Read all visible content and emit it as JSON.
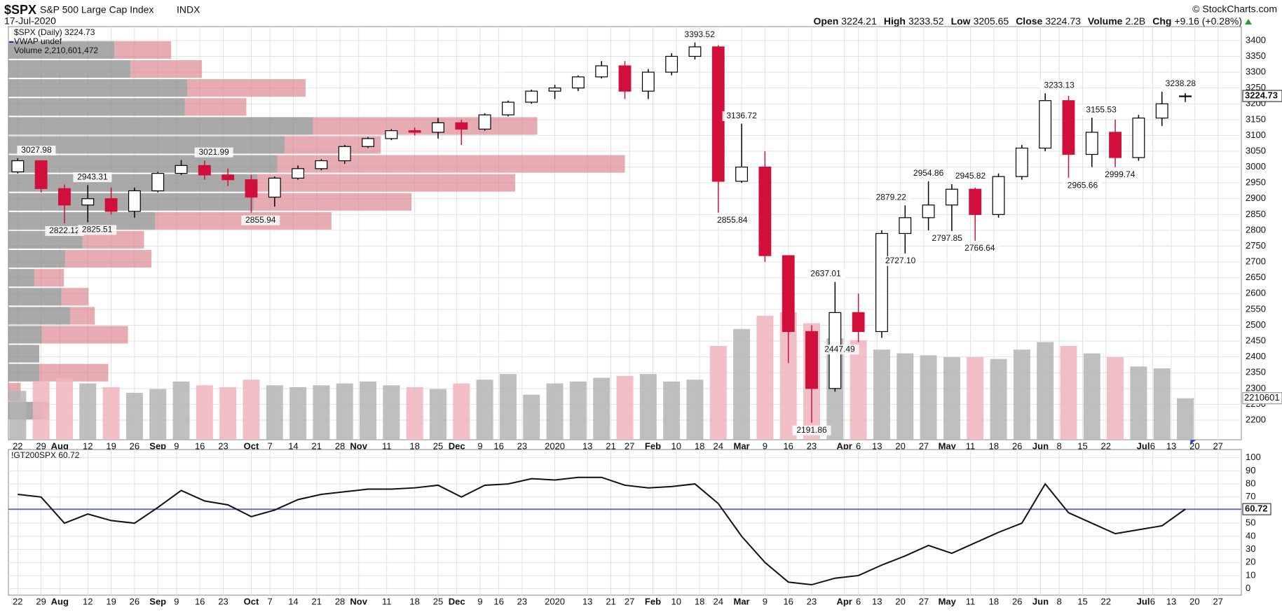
{
  "header": {
    "symbol": "$SPX",
    "name": "S&P 500 Large Cap Index",
    "exchange": "INDX",
    "date": "17-Jul-2020",
    "credit": "© StockCharts.com",
    "stats": [
      {
        "label": "Open",
        "value": "3224.21"
      },
      {
        "label": "High",
        "value": "3233.52"
      },
      {
        "label": "Low",
        "value": "3205.65"
      },
      {
        "label": "Close",
        "value": "3224.73"
      },
      {
        "label": "Volume",
        "value": "2.2B"
      },
      {
        "label": "Chg",
        "value": "+9.16 (+0.28%)"
      }
    ]
  },
  "chart_data": [
    {
      "type": "candlestick",
      "legend": [
        "$SPX (Daily) 3224.73",
        "VWAP undef",
        "Volume 2,210,601,472"
      ],
      "up_color": "#000000",
      "down_color": "#d0103a",
      "volume_up_color": "#b4b4b4",
      "volume_down_color": "#f0b4bc",
      "grid": true,
      "x": [
        0,
        5,
        10,
        15,
        20,
        25,
        30,
        35,
        40,
        45,
        50,
        55,
        60,
        65,
        70,
        75,
        80,
        85,
        90,
        95,
        100,
        105,
        110,
        115,
        120,
        125,
        130,
        135,
        140,
        145,
        150,
        155,
        160,
        165,
        170,
        175,
        180,
        185,
        190,
        195,
        200,
        205,
        210,
        215,
        220,
        225,
        230,
        235,
        240,
        245,
        250
      ],
      "open": [
        2985,
        3020,
        2932,
        2880,
        2900,
        2860,
        2925,
        2980,
        3005,
        2975,
        2960,
        2905,
        2965,
        2995,
        3020,
        3065,
        3090,
        3115,
        3110,
        3140,
        3120,
        3165,
        3205,
        3240,
        3250,
        3285,
        3320,
        3240,
        3300,
        3350,
        3380,
        2955,
        3000,
        2720,
        2480,
        2300,
        2540,
        2480,
        2790,
        2840,
        2880,
        2930,
        2850,
        2970,
        3060,
        3210,
        3040,
        3110,
        3030,
        3155,
        3224.21
      ],
      "high": [
        3028,
        3020,
        2945,
        2943,
        2935,
        2935,
        2985,
        3022,
        3021,
        2995,
        2975,
        2970,
        3005,
        3025,
        3070,
        3095,
        3120,
        3125,
        3155,
        3150,
        3170,
        3210,
        3245,
        3260,
        3290,
        3335,
        3335,
        3310,
        3360,
        3394,
        3385,
        3137,
        3050,
        2720,
        2500,
        2637,
        2600,
        2800,
        2879,
        2955,
        2946,
        2935,
        2980,
        3070,
        3233,
        3225,
        3156,
        3150,
        3165,
        3238,
        3233.52
      ],
      "low": [
        2980,
        2920,
        2822,
        2826,
        2850,
        2840,
        2920,
        2975,
        2960,
        2940,
        2856,
        2875,
        2960,
        2990,
        3010,
        3060,
        3085,
        3100,
        3090,
        3070,
        3115,
        3160,
        3200,
        3215,
        3240,
        3280,
        3215,
        3215,
        3290,
        3340,
        2856,
        2950,
        2700,
        2380,
        2192,
        2290,
        2447,
        2460,
        2727,
        2800,
        2798,
        2767,
        2840,
        2960,
        3050,
        2966,
        3000,
        3000,
        3020,
        3130,
        3205.65
      ],
      "close": [
        3020,
        2932,
        2880,
        2900,
        2860,
        2925,
        2980,
        3005,
        2975,
        2960,
        2905,
        2965,
        2995,
        3020,
        3065,
        3090,
        3115,
        3110,
        3140,
        3120,
        3165,
        3205,
        3240,
        3250,
        3285,
        3320,
        3240,
        3300,
        3350,
        3380,
        2955,
        3000,
        2720,
        2480,
        2300,
        2540,
        2480,
        2790,
        2840,
        2880,
        2930,
        2850,
        2970,
        3060,
        3210,
        3040,
        3110,
        3030,
        3155,
        3200,
        3224.73
      ],
      "volume": {
        "values": [
          2.6,
          3.1,
          3.3,
          3.0,
          2.8,
          2.5,
          2.7,
          3.1,
          2.9,
          2.8,
          3.2,
          2.9,
          2.8,
          2.9,
          3.0,
          3.1,
          2.9,
          2.8,
          2.7,
          3.0,
          3.2,
          3.5,
          2.4,
          3.0,
          3.1,
          3.3,
          3.4,
          3.5,
          3.1,
          3.2,
          5.0,
          5.9,
          6.6,
          6.8,
          6.2,
          5.4,
          5.3,
          4.8,
          4.6,
          4.5,
          4.4,
          4.4,
          4.3,
          4.8,
          5.2,
          5.0,
          4.6,
          4.4,
          3.9,
          3.8,
          2.210601472
        ],
        "y2lim": [
          0,
          22
        ],
        "tag": "2210601"
      },
      "volume_by_price": {
        "bins": [
          2200,
          2260,
          2320,
          2380,
          2440,
          2500,
          2560,
          2620,
          2680,
          2740,
          2800,
          2860,
          2920,
          2980,
          3040,
          3100,
          3160,
          3220,
          3280,
          3340,
          3400
        ],
        "down": [
          2.7,
          0,
          2.5,
          2.5,
          2.7,
          5.0,
          4.3,
          2.1,
          4.6,
          6.0,
          11.9,
          19.9,
          20.2,
          21.8,
          22.4,
          24.7,
          14.3,
          14.5,
          9.9,
          8.6
        ],
        "up": [
          0.6,
          1.0,
          5.6,
          0,
          7.0,
          2.0,
          2.2,
          2.4,
          7.0,
          5.0,
          14.3,
          12.8,
          20.9,
          28.2,
          7.8,
          18.2,
          5.0,
          9.6,
          5.8,
          4.6
        ],
        "xlim": [
          0,
          100
        ]
      },
      "annotations": [
        {
          "label": "3027.98",
          "x": 4,
          "value": 3027.98,
          "side": "above"
        },
        {
          "label": "2943.31",
          "x": 16,
          "value": 2943.31,
          "side": "above"
        },
        {
          "label": "2822.12",
          "x": 10,
          "value": 2822.12,
          "side": "below"
        },
        {
          "label": "2825.51",
          "x": 17,
          "value": 2825.51,
          "side": "below"
        },
        {
          "label": "3021.99",
          "x": 42,
          "value": 3021.99,
          "side": "above"
        },
        {
          "label": "2855.94",
          "x": 52,
          "value": 2855.94,
          "side": "below"
        },
        {
          "label": "3393.52",
          "x": 146,
          "value": 3393.52,
          "side": "above"
        },
        {
          "label": "3136.72",
          "x": 155,
          "value": 3136.72,
          "side": "above"
        },
        {
          "label": "2855.84",
          "x": 153,
          "value": 2855.84,
          "side": "below"
        },
        {
          "label": "2637.01",
          "x": 173,
          "value": 2637.01,
          "side": "above"
        },
        {
          "label": "2447.49",
          "x": 176,
          "value": 2447.49,
          "side": "below"
        },
        {
          "label": "2191.86",
          "x": 170,
          "value": 2191.86,
          "side": "below"
        },
        {
          "label": "2879.22",
          "x": 187,
          "value": 2879.22,
          "side": "above"
        },
        {
          "label": "2727.10",
          "x": 189,
          "value": 2727.1,
          "side": "below"
        },
        {
          "label": "2954.86",
          "x": 195,
          "value": 2954.86,
          "side": "above"
        },
        {
          "label": "2797.85",
          "x": 199,
          "value": 2797.85,
          "side": "below"
        },
        {
          "label": "2945.82",
          "x": 204,
          "value": 2945.82,
          "side": "above"
        },
        {
          "label": "2766.64",
          "x": 206,
          "value": 2766.64,
          "side": "below"
        },
        {
          "label": "3233.13",
          "x": 223,
          "value": 3233.13,
          "side": "above"
        },
        {
          "label": "2965.66",
          "x": 228,
          "value": 2965.66,
          "side": "below"
        },
        {
          "label": "3155.53",
          "x": 232,
          "value": 3155.53,
          "side": "above"
        },
        {
          "label": "2999.74",
          "x": 236,
          "value": 2999.74,
          "side": "below"
        },
        {
          "label": "3238.28",
          "x": 249,
          "value": 3238.28,
          "side": "above"
        }
      ],
      "xlim": [
        -2,
        262
      ],
      "ylim": [
        2138,
        3444
      ],
      "yticks": [
        2200,
        2250,
        2300,
        2350,
        2400,
        2450,
        2500,
        2550,
        2600,
        2650,
        2700,
        2750,
        2800,
        2850,
        2900,
        2950,
        3000,
        3050,
        3100,
        3150,
        3200,
        3250,
        3300,
        3350,
        3400
      ],
      "xticks": [
        {
          "value": 0,
          "label": "22"
        },
        {
          "value": 5,
          "label": "29"
        },
        {
          "value": 9,
          "label": "Aug"
        },
        {
          "value": 15,
          "label": "12"
        },
        {
          "value": 20,
          "label": "19"
        },
        {
          "value": 25,
          "label": "26"
        },
        {
          "value": 30,
          "label": "Sep"
        },
        {
          "value": 34,
          "label": "9"
        },
        {
          "value": 39,
          "label": "16"
        },
        {
          "value": 44,
          "label": "23"
        },
        {
          "value": 50,
          "label": "Oct"
        },
        {
          "value": 54,
          "label": "7"
        },
        {
          "value": 59,
          "label": "14"
        },
        {
          "value": 64,
          "label": "21"
        },
        {
          "value": 69,
          "label": "28"
        },
        {
          "value": 73,
          "label": "Nov"
        },
        {
          "value": 79,
          "label": "11"
        },
        {
          "value": 85,
          "label": "18"
        },
        {
          "value": 90,
          "label": "25"
        },
        {
          "value": 94,
          "label": "Dec"
        },
        {
          "value": 99,
          "label": "9"
        },
        {
          "value": 103,
          "label": "16"
        },
        {
          "value": 108,
          "label": "23"
        },
        {
          "value": 115,
          "label": "2020"
        },
        {
          "value": 122,
          "label": "13"
        },
        {
          "value": 127,
          "label": "21"
        },
        {
          "value": 131,
          "label": "27"
        },
        {
          "value": 136,
          "label": "Feb"
        },
        {
          "value": 141,
          "label": "10"
        },
        {
          "value": 146,
          "label": "18"
        },
        {
          "value": 150,
          "label": "24"
        },
        {
          "value": 155,
          "label": "Mar"
        },
        {
          "value": 160,
          "label": "9"
        },
        {
          "value": 165,
          "label": "16"
        },
        {
          "value": 170,
          "label": "23"
        },
        {
          "value": 177,
          "label": "Apr"
        },
        {
          "value": 180,
          "label": "6"
        },
        {
          "value": 184,
          "label": "13"
        },
        {
          "value": 189,
          "label": "20"
        },
        {
          "value": 194,
          "label": "27"
        },
        {
          "value": 199,
          "label": "May"
        },
        {
          "value": 204,
          "label": "11"
        },
        {
          "value": 209,
          "label": "18"
        },
        {
          "value": 214,
          "label": "26"
        },
        {
          "value": 219,
          "label": "Jun"
        },
        {
          "value": 223,
          "label": "8"
        },
        {
          "value": 228,
          "label": "15"
        },
        {
          "value": 233,
          "label": "22"
        },
        {
          "value": 241,
          "label": "Jul"
        },
        {
          "value": 243,
          "label": "6"
        },
        {
          "value": 247,
          "label": "13"
        },
        {
          "value": 252,
          "label": "20"
        },
        {
          "value": 257,
          "label": "27"
        }
      ]
    },
    {
      "type": "line",
      "title": "!GT200SPX 60.72",
      "color": "#111111",
      "reference_line": 60.72,
      "reference_color": "#2a35a8",
      "grid": true,
      "x": [
        0,
        5,
        10,
        15,
        20,
        25,
        30,
        35,
        40,
        45,
        50,
        55,
        60,
        65,
        70,
        75,
        80,
        85,
        90,
        95,
        100,
        105,
        110,
        115,
        120,
        125,
        130,
        135,
        140,
        145,
        150,
        155,
        160,
        165,
        170,
        175,
        180,
        185,
        190,
        195,
        200,
        205,
        210,
        215,
        220,
        225,
        230,
        235,
        240,
        245,
        250
      ],
      "values": [
        72,
        70,
        50,
        57,
        52,
        50,
        62,
        75,
        67,
        64,
        55,
        60,
        68,
        72,
        74,
        76,
        76,
        77,
        79,
        70,
        79,
        80,
        84,
        83,
        85,
        85,
        79,
        77,
        78,
        80,
        65,
        40,
        20,
        5,
        3,
        8,
        10,
        18,
        25,
        33,
        27,
        35,
        43,
        50,
        80,
        58,
        50,
        42,
        45,
        48,
        60.72
      ],
      "xlim": [
        -2,
        262
      ],
      "ylim": [
        -5,
        106.25
      ],
      "yticks": [
        0,
        10,
        20,
        30,
        40,
        50,
        60,
        70,
        80,
        90,
        100
      ],
      "xticks": [
        {
          "value": 0,
          "label": "22"
        },
        {
          "value": 5,
          "label": "29"
        },
        {
          "value": 9,
          "label": "Aug"
        },
        {
          "value": 15,
          "label": "12"
        },
        {
          "value": 20,
          "label": "19"
        },
        {
          "value": 25,
          "label": "26"
        },
        {
          "value": 30,
          "label": "Sep"
        },
        {
          "value": 34,
          "label": "9"
        },
        {
          "value": 39,
          "label": "16"
        },
        {
          "value": 44,
          "label": "23"
        },
        {
          "value": 50,
          "label": "Oct"
        },
        {
          "value": 54,
          "label": "7"
        },
        {
          "value": 59,
          "label": "14"
        },
        {
          "value": 64,
          "label": "21"
        },
        {
          "value": 69,
          "label": "28"
        },
        {
          "value": 73,
          "label": "Nov"
        },
        {
          "value": 79,
          "label": "11"
        },
        {
          "value": 85,
          "label": "18"
        },
        {
          "value": 90,
          "label": "25"
        },
        {
          "value": 94,
          "label": "Dec"
        },
        {
          "value": 99,
          "label": "9"
        },
        {
          "value": 103,
          "label": "16"
        },
        {
          "value": 108,
          "label": "23"
        },
        {
          "value": 115,
          "label": "2020"
        },
        {
          "value": 122,
          "label": "13"
        },
        {
          "value": 127,
          "label": "21"
        },
        {
          "value": 131,
          "label": "27"
        },
        {
          "value": 136,
          "label": "Feb"
        },
        {
          "value": 141,
          "label": "10"
        },
        {
          "value": 146,
          "label": "18"
        },
        {
          "value": 150,
          "label": "24"
        },
        {
          "value": 155,
          "label": "Mar"
        },
        {
          "value": 160,
          "label": "9"
        },
        {
          "value": 165,
          "label": "16"
        },
        {
          "value": 170,
          "label": "23"
        },
        {
          "value": 177,
          "label": "Apr"
        },
        {
          "value": 180,
          "label": "6"
        },
        {
          "value": 184,
          "label": "13"
        },
        {
          "value": 189,
          "label": "20"
        },
        {
          "value": 194,
          "label": "27"
        },
        {
          "value": 199,
          "label": "May"
        },
        {
          "value": 204,
          "label": "11"
        },
        {
          "value": 209,
          "label": "18"
        },
        {
          "value": 214,
          "label": "26"
        },
        {
          "value": 219,
          "label": "Jun"
        },
        {
          "value": 223,
          "label": "8"
        },
        {
          "value": 228,
          "label": "15"
        },
        {
          "value": 233,
          "label": "22"
        },
        {
          "value": 241,
          "label": "Jul"
        },
        {
          "value": 243,
          "label": "6"
        },
        {
          "value": 247,
          "label": "13"
        },
        {
          "value": 252,
          "label": "20"
        },
        {
          "value": 257,
          "label": "27"
        }
      ]
    }
  ]
}
